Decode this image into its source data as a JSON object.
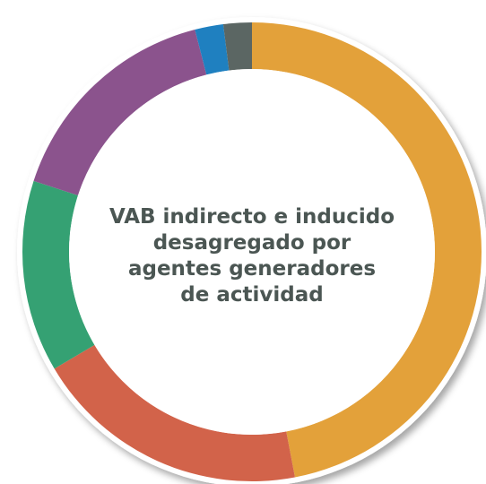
{
  "chart_data": {
    "type": "donut",
    "title": [
      "VAB indirecto e inducido",
      "desagregado por",
      "agentes generadores",
      "de actividad"
    ],
    "values": [
      47,
      19.5,
      13.5,
      16,
      2,
      2
    ],
    "colors": [
      "#e3a13a",
      "#d2634a",
      "#35a173",
      "#8b538d",
      "#1f80c0",
      "#5b6663"
    ]
  }
}
